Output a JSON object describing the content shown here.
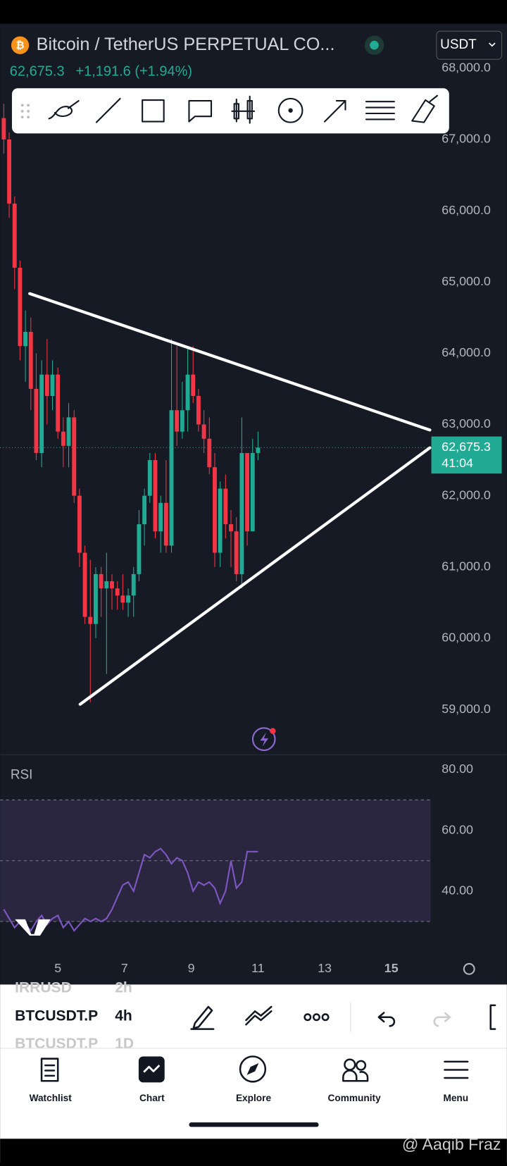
{
  "header": {
    "symbol": "Bitcoin / TetherUS PERPETUAL CO...",
    "last_price": "62,675.3",
    "change": "+1,191.6 (+1.94%)",
    "currency": "USDT"
  },
  "price_chart": {
    "ticks": [
      {
        "value": 68000,
        "label": "68,000.0"
      },
      {
        "value": 67000,
        "label": "67,000.0"
      },
      {
        "value": 66000,
        "label": "66,000.0"
      },
      {
        "value": 65000,
        "label": "65,000.0"
      },
      {
        "value": 64000,
        "label": "64,000.0"
      },
      {
        "value": 63000,
        "label": "63,000.0"
      },
      {
        "value": 62000,
        "label": "62,000.0"
      },
      {
        "value": 61000,
        "label": "61,000.0"
      },
      {
        "value": 60000,
        "label": "60,000.0"
      },
      {
        "value": 59000,
        "label": "59,000.0"
      }
    ],
    "last_price_value": 62675.3,
    "countdown": "41:04",
    "candles": [
      [
        67300,
        67500,
        66800,
        67000
      ],
      [
        67000,
        67100,
        65900,
        66100
      ],
      [
        66100,
        66200,
        64900,
        65200
      ],
      [
        65200,
        65300,
        63900,
        64100
      ],
      [
        64100,
        64600,
        63600,
        64300
      ],
      [
        64300,
        64500,
        63200,
        63500
      ],
      [
        63500,
        64000,
        62500,
        62600
      ],
      [
        62600,
        63900,
        62400,
        63700
      ],
      [
        63700,
        64200,
        63000,
        63400
      ],
      [
        63400,
        63900,
        63200,
        63700
      ],
      [
        63700,
        63800,
        62800,
        62900
      ],
      [
        62900,
        63100,
        62400,
        62700
      ],
      [
        62700,
        63300,
        62400,
        63100
      ],
      [
        63100,
        63200,
        61900,
        62000
      ],
      [
        62000,
        62100,
        61000,
        61200
      ],
      [
        61200,
        61300,
        60200,
        60300
      ],
      [
        60300,
        61100,
        59100,
        60200
      ],
      [
        60200,
        61000,
        60000,
        60900
      ],
      [
        60900,
        61000,
        60300,
        60700
      ],
      [
        60700,
        61200,
        59500,
        60800
      ],
      [
        60800,
        60900,
        60400,
        60700
      ],
      [
        60700,
        60800,
        60400,
        60600
      ],
      [
        60600,
        60900,
        60400,
        60500
      ],
      [
        60500,
        60700,
        60300,
        60600
      ],
      [
        60600,
        61000,
        60300,
        60900
      ],
      [
        60900,
        61800,
        60800,
        61600
      ],
      [
        61600,
        62100,
        61300,
        62000
      ],
      [
        62000,
        62600,
        61900,
        62500
      ],
      [
        62500,
        62600,
        61400,
        61500
      ],
      [
        61500,
        62000,
        61200,
        61900
      ],
      [
        61900,
        62500,
        61200,
        61300
      ],
      [
        61300,
        64200,
        61200,
        63200
      ],
      [
        63200,
        64100,
        62700,
        62900
      ],
      [
        62900,
        63600,
        62800,
        63200
      ],
      [
        63200,
        64100,
        62900,
        63700
      ],
      [
        63700,
        64100,
        63300,
        63400
      ],
      [
        63400,
        63500,
        62900,
        63000
      ],
      [
        63000,
        63200,
        62600,
        62800
      ],
      [
        62800,
        63100,
        62300,
        62400
      ],
      [
        62400,
        62600,
        61000,
        61200
      ],
      [
        61200,
        62200,
        61000,
        62100
      ],
      [
        62100,
        62300,
        61400,
        61600
      ],
      [
        61600,
        61800,
        61000,
        61500
      ],
      [
        61500,
        61700,
        60800,
        60900
      ],
      [
        60900,
        63100,
        60700,
        62600
      ],
      [
        62600,
        62600,
        61300,
        61500
      ],
      [
        61500,
        62800,
        61500,
        62600
      ],
      [
        62600,
        62900,
        62500,
        62675.3
      ]
    ]
  },
  "rsi": {
    "label": "RSI",
    "ticks": [
      {
        "value": 80,
        "label": "80.00"
      },
      {
        "value": 60,
        "label": "60.00"
      },
      {
        "value": 40,
        "label": "40.00"
      }
    ],
    "bands": [
      70,
      50,
      30
    ],
    "values": [
      34,
      31,
      28,
      30,
      29,
      27,
      30,
      32,
      29,
      31,
      32,
      28,
      30,
      27,
      29,
      31,
      30,
      31,
      30,
      31,
      34,
      38,
      42,
      43,
      40,
      46,
      52,
      51,
      53,
      54,
      52,
      49,
      51,
      50,
      46,
      40,
      43,
      42,
      43,
      41,
      36,
      40,
      50,
      41,
      43,
      53,
      53,
      53
    ]
  },
  "x_axis": [
    "5",
    "7",
    "9",
    "11",
    "13",
    "15"
  ],
  "bottom_toolbar": {
    "rows": [
      [
        "IRRUSD",
        "2h"
      ],
      [
        "BTCUSDT.P",
        "4h"
      ],
      [
        "BTCUSDT.P",
        "1D"
      ]
    ]
  },
  "nav": [
    "Watchlist",
    "Chart",
    "Explore",
    "Community",
    "Menu"
  ],
  "watermark": "@ Aaqib Fraz"
}
